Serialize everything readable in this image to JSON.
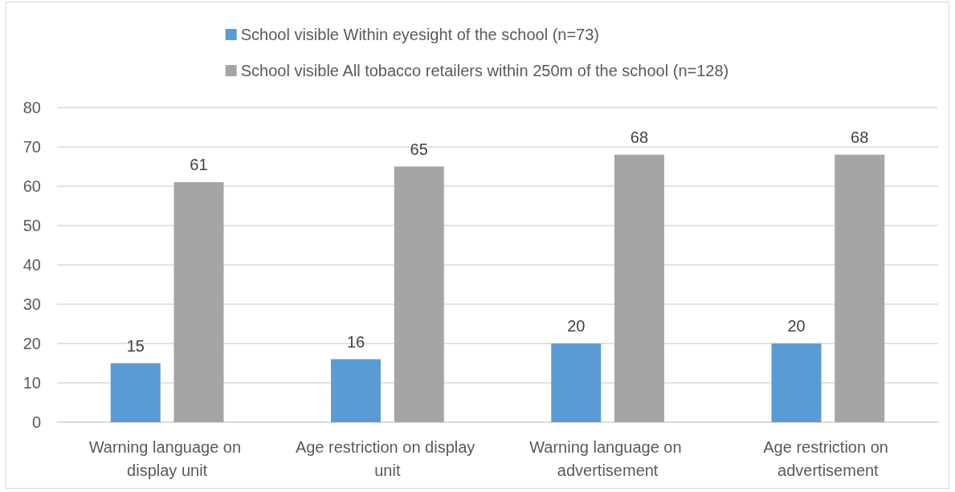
{
  "chart_data": {
    "type": "bar",
    "categories": [
      "Warning language on display unit",
      "Age restriction on display unit",
      "Warning language on advertisement",
      "Age restriction on advertisement"
    ],
    "series": [
      {
        "name": "School visible Within eyesight of the school (n=73)",
        "color": "#5b9bd5",
        "values": [
          15,
          16,
          20,
          20
        ]
      },
      {
        "name": "School visible All tobacco retailers within 250m of the school (n=128)",
        "color": "#a5a5a5",
        "values": [
          61,
          65,
          68,
          68
        ]
      }
    ],
    "ylim": [
      0,
      80
    ],
    "yticks": [
      0,
      10,
      20,
      30,
      40,
      50,
      60,
      70,
      80
    ],
    "grid": "y",
    "legend": "top",
    "data_labels": true
  }
}
